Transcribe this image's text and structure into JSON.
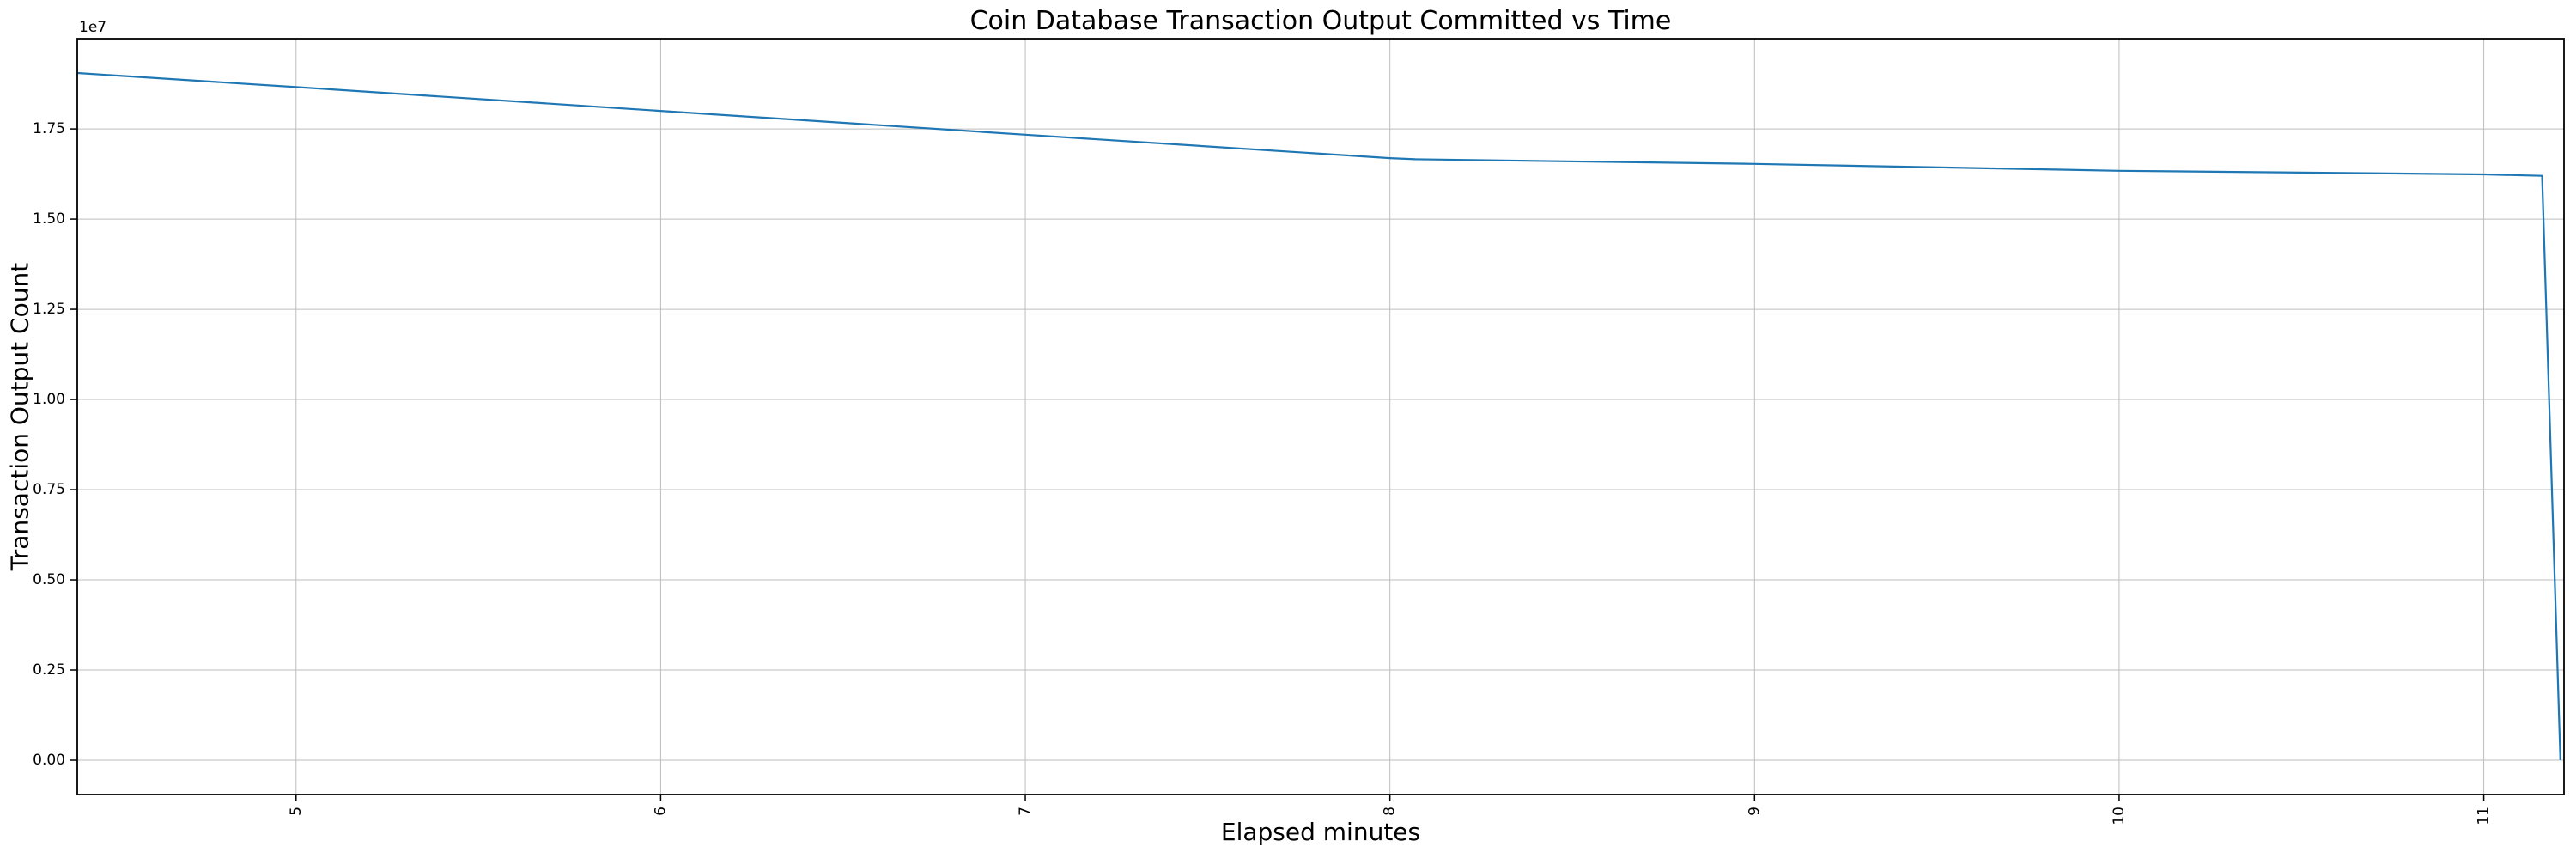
{
  "chart_data": {
    "type": "line",
    "title": "Coin Database Transaction Output Committed vs Time",
    "xlabel": "Elapsed minutes",
    "ylabel": "Transaction Output Count",
    "y_offset_label": "1e7",
    "x": [
      4.4,
      5,
      6,
      7,
      8,
      8.07,
      9,
      10,
      11,
      11.16,
      11.21
    ],
    "y": [
      19050000,
      18660000,
      18000000,
      17340000,
      16690000,
      16660000,
      16530000,
      16340000,
      16240000,
      16200000,
      0
    ],
    "xlim": [
      4.4,
      11.22
    ],
    "ylim": [
      -952500,
      20002500
    ],
    "x_tick_values": [
      5,
      6,
      7,
      8,
      9,
      10,
      11
    ],
    "x_tick_labels": [
      "5",
      "6",
      "7",
      "8",
      "9",
      "10",
      "11"
    ],
    "x_tick_rotation_deg": 90,
    "y_tick_values": [
      0,
      2500000,
      5000000,
      7500000,
      10000000,
      12500000,
      15000000,
      17500000
    ],
    "y_tick_labels": [
      "0.00",
      "0.25",
      "0.50",
      "0.75",
      "1.00",
      "1.25",
      "1.50",
      "1.75"
    ],
    "grid": true,
    "legend": null,
    "series_name": "Transaction Output Count"
  },
  "colors": {
    "line": "#1f77b4",
    "grid": "#bdbdbd",
    "spine": "#000000",
    "background": "#ffffff"
  }
}
